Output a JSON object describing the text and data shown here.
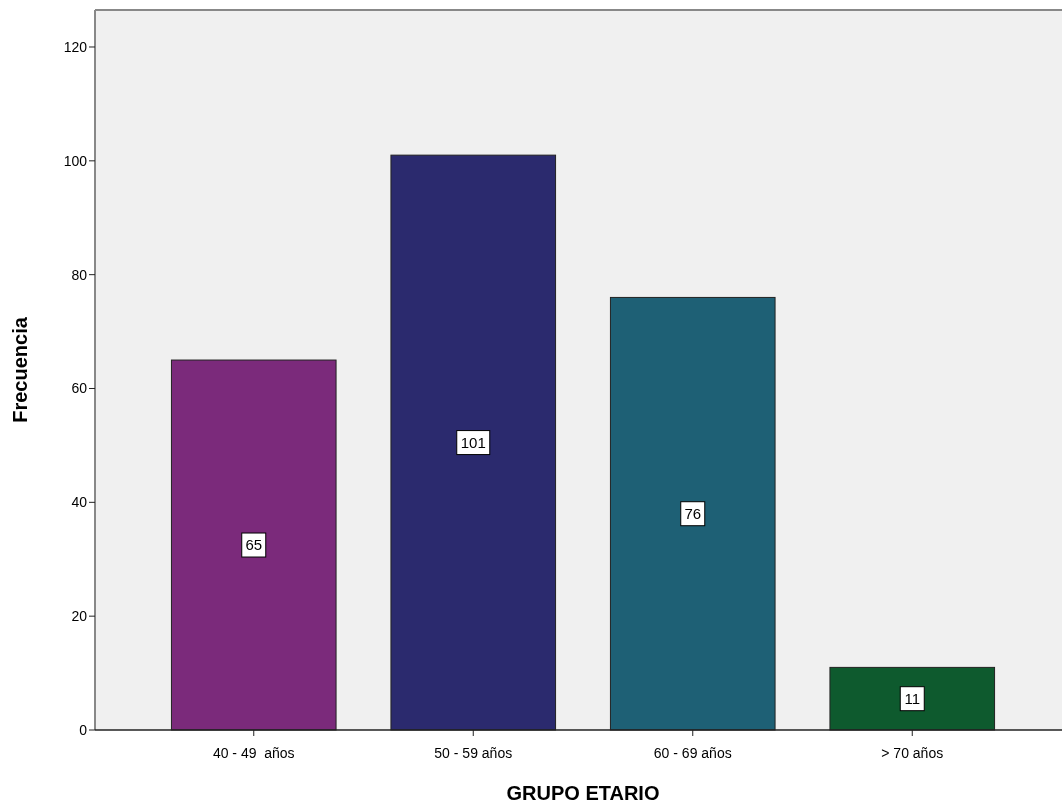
{
  "chart_data": {
    "type": "bar",
    "xlabel": "GRUPO ETARIO",
    "ylabel": "Frecuencia",
    "categories": [
      "40 - 49  años",
      "50 - 59 años",
      "60 - 69 años",
      "> 70 años"
    ],
    "values": [
      65,
      101,
      76,
      11
    ],
    "colors": [
      "#7b2a7b",
      "#2b2a6e",
      "#1e6075",
      "#0e5a2e"
    ],
    "ylim": [
      0,
      126.5
    ],
    "yticks": [
      0,
      20,
      40,
      60,
      80,
      100,
      120
    ],
    "data_labels": true,
    "grid": false
  }
}
